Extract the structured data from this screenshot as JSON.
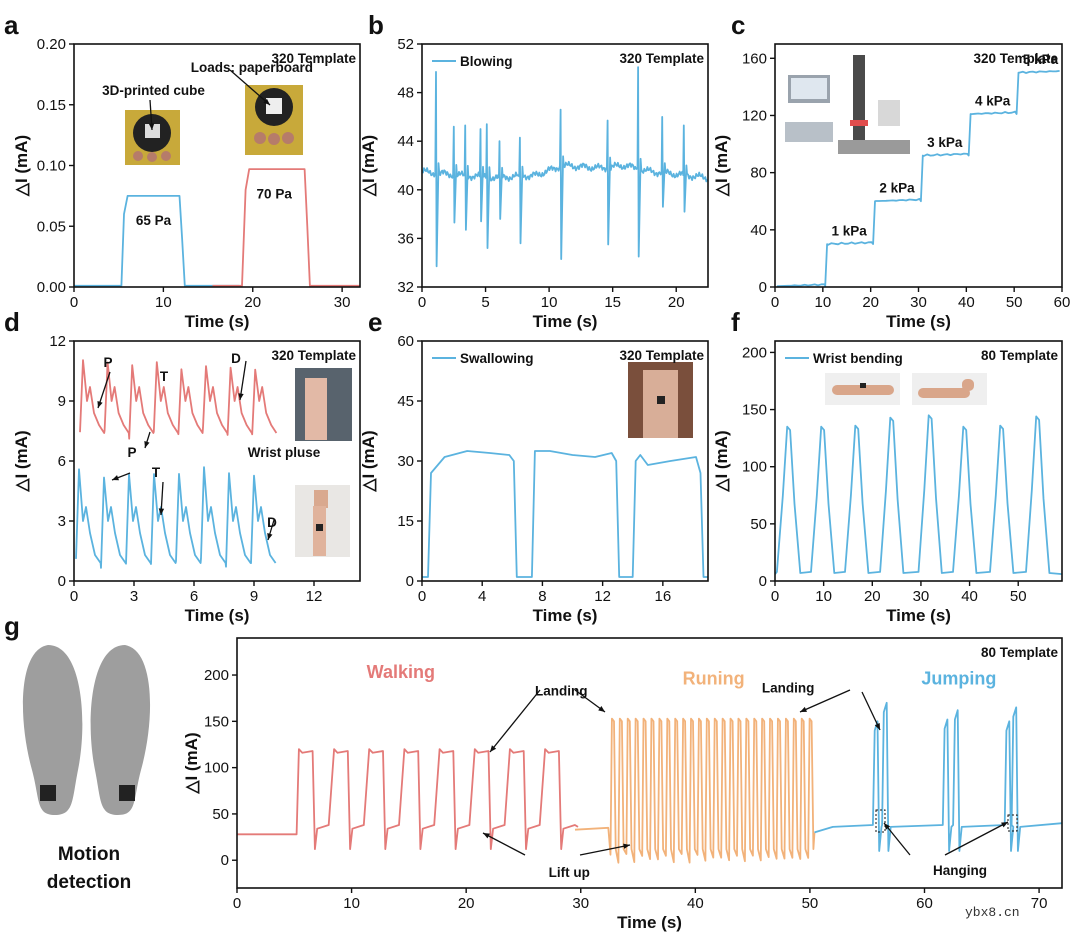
{
  "figure": {
    "watermark": "ybx8.cn",
    "colors": {
      "blue": "#5bb3df",
      "red": "#e47a78",
      "orange": "#f2b27a",
      "axis": "#111111"
    }
  },
  "chart_data": [
    {
      "id": "a",
      "panel_label": "a",
      "type": "line",
      "xlabel": "Time (s)",
      "ylabel": "△I (mA)",
      "xlim": [
        0,
        32
      ],
      "ylim": [
        0,
        0.2
      ],
      "xticks": [
        0,
        10,
        20,
        30
      ],
      "yticks": [
        0.0,
        0.05,
        0.1,
        0.15,
        0.2
      ],
      "ytick_labels": [
        "0.00",
        "0.05",
        "0.10",
        "0.15",
        "0.20"
      ],
      "template": "320 Template",
      "series": [
        {
          "color": "blue",
          "x": [
            0,
            5.3,
            5.6,
            6.0,
            11.8,
            12.1,
            12.4,
            18.5
          ],
          "y": [
            0.001,
            0.001,
            0.06,
            0.075,
            0.075,
            0.04,
            0.001,
            0.001
          ]
        },
        {
          "color": "red",
          "x": [
            15.5,
            18.8,
            19.2,
            19.6,
            25.8,
            26.1,
            26.4,
            32
          ],
          "y": [
            0.001,
            0.001,
            0.08,
            0.097,
            0.097,
            0.05,
            0.001,
            0.001
          ]
        }
      ],
      "annotations": [
        {
          "text": "65 Pa",
          "x": 8.9,
          "y": 0.051
        },
        {
          "text": "70 Pa",
          "x": 22.4,
          "y": 0.073
        },
        {
          "text": "Loads: paperboard",
          "x": 19.9,
          "y": 0.177
        },
        {
          "text": "3D-printed cube",
          "x": 8.9,
          "y": 0.158
        }
      ]
    },
    {
      "id": "b",
      "panel_label": "b",
      "type": "line",
      "xlabel": "Time (s)",
      "ylabel": "△I (mA)",
      "xlim": [
        0,
        22.5
      ],
      "ylim": [
        32,
        52
      ],
      "xticks": [
        0,
        5,
        10,
        15,
        20
      ],
      "yticks": [
        32,
        36,
        40,
        44,
        48,
        52
      ],
      "template": "320 Template",
      "legend": "Blowing",
      "series": [
        {
          "color": "blue",
          "base": [
            [
              0,
              41.5
            ],
            [
              3,
              41.2
            ],
            [
              6,
              41.0
            ],
            [
              9,
              41.2
            ],
            [
              11,
              42.0
            ],
            [
              14,
              41.8
            ],
            [
              16,
              42.0
            ],
            [
              18,
              41.5
            ],
            [
              22.5,
              41.0
            ]
          ],
          "spikes": [
            [
              1.1,
              49.7,
              33.7
            ],
            [
              2.5,
              45.2,
              37.3
            ],
            [
              3.4,
              45.3,
              36.7
            ],
            [
              4.6,
              45.0,
              37.4
            ],
            [
              5.1,
              45.4,
              35.2
            ],
            [
              6.1,
              44.0,
              37.6
            ],
            [
              7.7,
              44.3,
              35.6
            ],
            [
              10.9,
              46.6,
              34.3
            ],
            [
              14.6,
              45.7,
              35.5
            ],
            [
              17.0,
              50.1,
              34.5
            ],
            [
              18.9,
              46.0,
              38.6
            ],
            [
              20.6,
              45.3,
              38.2
            ]
          ]
        }
      ]
    },
    {
      "id": "c",
      "panel_label": "c",
      "type": "line",
      "xlabel": "Time (s)",
      "ylabel": "△I (mA)",
      "xlim": [
        0,
        60
      ],
      "ylim": [
        0,
        170
      ],
      "xticks": [
        0,
        10,
        20,
        30,
        40,
        50,
        60
      ],
      "yticks": [
        0,
        40,
        80,
        120,
        160
      ],
      "template": "320 Template",
      "series": [
        {
          "color": "blue",
          "steps": [
            [
              0,
              0.5
            ],
            [
              10.5,
              30
            ],
            [
              20.5,
              60
            ],
            [
              30.5,
              92
            ],
            [
              40.5,
              121
            ],
            [
              50.5,
              150
            ]
          ],
          "xmax": 60
        }
      ],
      "annotations": [
        {
          "text": "1 kPa",
          "x": 15.5,
          "y": 36
        },
        {
          "text": "2 kPa",
          "x": 25.5,
          "y": 66
        },
        {
          "text": "3 kPa",
          "x": 35.5,
          "y": 98
        },
        {
          "text": "4 kPa",
          "x": 45.5,
          "y": 127
        },
        {
          "text": "5 kPa",
          "x": 55.5,
          "y": 156
        }
      ]
    },
    {
      "id": "d",
      "panel_label": "d",
      "type": "line",
      "xlabel": "Time (s)",
      "ylabel": "△I (mA)",
      "xlim": [
        0,
        14.3
      ],
      "ylim": [
        0,
        12
      ],
      "xticks": [
        0,
        3,
        6,
        9,
        12
      ],
      "yticks": [
        0,
        3,
        6,
        9,
        12
      ],
      "template": "320 Template",
      "series": [
        {
          "color": "red",
          "pulse": {
            "x0": 0.3,
            "x1": 9.8,
            "period": 1.23,
            "base": 7.4,
            "peak": 10.8,
            "notch": 8.6
          }
        },
        {
          "color": "blue",
          "pulse": {
            "x0": 0.1,
            "x1": 9.8,
            "period": 1.25,
            "base": 0.9,
            "peak": 5.4,
            "notch": 2.6
          }
        }
      ],
      "annotations": [
        {
          "text": "P",
          "x": 1.7,
          "y": 10.7
        },
        {
          "text": "T",
          "x": 4.5,
          "y": 10.0
        },
        {
          "text": "D",
          "x": 8.1,
          "y": 10.9
        },
        {
          "text": "Wrist pluse",
          "x": 10.5,
          "y": 6.2
        },
        {
          "text": "P",
          "x": 2.9,
          "y": 6.2
        },
        {
          "text": "T",
          "x": 4.1,
          "y": 5.2
        },
        {
          "text": "D",
          "x": 9.9,
          "y": 2.7
        }
      ]
    },
    {
      "id": "e",
      "panel_label": "e",
      "type": "line",
      "xlabel": "Time (s)",
      "ylabel": "△I (mA)",
      "xlim": [
        0,
        19
      ],
      "ylim": [
        0,
        60
      ],
      "xticks": [
        0,
        4,
        8,
        12,
        16
      ],
      "yticks": [
        0,
        15,
        30,
        45,
        60
      ],
      "template": "320 Template",
      "legend": "Swallowing",
      "series": [
        {
          "color": "blue",
          "x": [
            0,
            0.4,
            0.6,
            1.5,
            3,
            4.5,
            5.8,
            6.1,
            6.3,
            7.3,
            7.5,
            8.5,
            10,
            11.5,
            12.6,
            12.9,
            13.1,
            14.0,
            14.2,
            14.5,
            15,
            16.5,
            18.2,
            18.5,
            18.7,
            19
          ],
          "y": [
            1,
            1,
            27,
            31,
            32.5,
            32,
            31.5,
            30,
            1,
            1,
            32.5,
            32.5,
            31.5,
            31,
            32,
            30,
            1,
            1,
            30,
            31.5,
            29,
            30,
            31,
            27,
            1,
            1
          ]
        }
      ]
    },
    {
      "id": "f",
      "panel_label": "f",
      "type": "line",
      "xlabel": "Time (s)",
      "ylabel": "△I (mA)",
      "xlim": [
        0,
        59
      ],
      "ylim": [
        0,
        210
      ],
      "xticks": [
        0,
        10,
        20,
        30,
        40,
        50
      ],
      "yticks": [
        0,
        50,
        100,
        150,
        200
      ],
      "template": "80 Template",
      "legend": "Wrist bending",
      "series": [
        {
          "color": "blue",
          "peaks": [
            [
              2.8,
              135
            ],
            [
              9.8,
              135
            ],
            [
              16.8,
              136
            ],
            [
              24.0,
              143
            ],
            [
              31.9,
              145
            ],
            [
              39.0,
              135
            ],
            [
              46.6,
              136
            ],
            [
              54.0,
              144
            ]
          ],
          "base": 6,
          "width": 2.4,
          "xmax": 59
        }
      ]
    },
    {
      "id": "g",
      "panel_label": "g",
      "type": "line",
      "xlabel": "Time (s)",
      "ylabel": "△I (mA)",
      "xlim": [
        0,
        72
      ],
      "ylim": [
        -30,
        240
      ],
      "xticks": [
        0,
        10,
        20,
        30,
        40,
        50,
        60,
        70
      ],
      "yticks": [
        0,
        50,
        100,
        150,
        200
      ],
      "template": "80 Template",
      "side_text": [
        "Motion",
        "detection"
      ],
      "series": [
        {
          "name": "Walking",
          "color": "red",
          "walk": {
            "x0": 5.2,
            "period": 3.07,
            "n": 8,
            "base": 28,
            "high": 120,
            "dip": 12
          }
        },
        {
          "name": "Runing",
          "color": "orange",
          "run": {
            "x0": 32.6,
            "x1": 50.4,
            "period": 0.69,
            "low": 2,
            "high": 153,
            "pre": 33
          }
        },
        {
          "name": "Jumping",
          "color": "blue",
          "jumps": [
            [
              55.9,
              150
            ],
            [
              56.7,
              170
            ],
            [
              62.0,
              152
            ],
            [
              62.9,
              162
            ],
            [
              67.4,
              150
            ],
            [
              68.0,
              165
            ]
          ]
        }
      ],
      "annotations": [
        {
          "text": "Walking",
          "x": 14.3,
          "y": 197,
          "color": "red"
        },
        {
          "text": "Runing",
          "x": 41.6,
          "y": 190,
          "color": "orange"
        },
        {
          "text": "Jumping",
          "x": 63.0,
          "y": 190,
          "color": "blue"
        },
        {
          "text": "Landing",
          "x": 28.3,
          "y": 178
        },
        {
          "text": "Landing",
          "x": 48.1,
          "y": 181
        },
        {
          "text": "Lift up",
          "x": 29.0,
          "y": -18
        },
        {
          "text": "Hanging",
          "x": 63.1,
          "y": -16
        }
      ]
    }
  ]
}
